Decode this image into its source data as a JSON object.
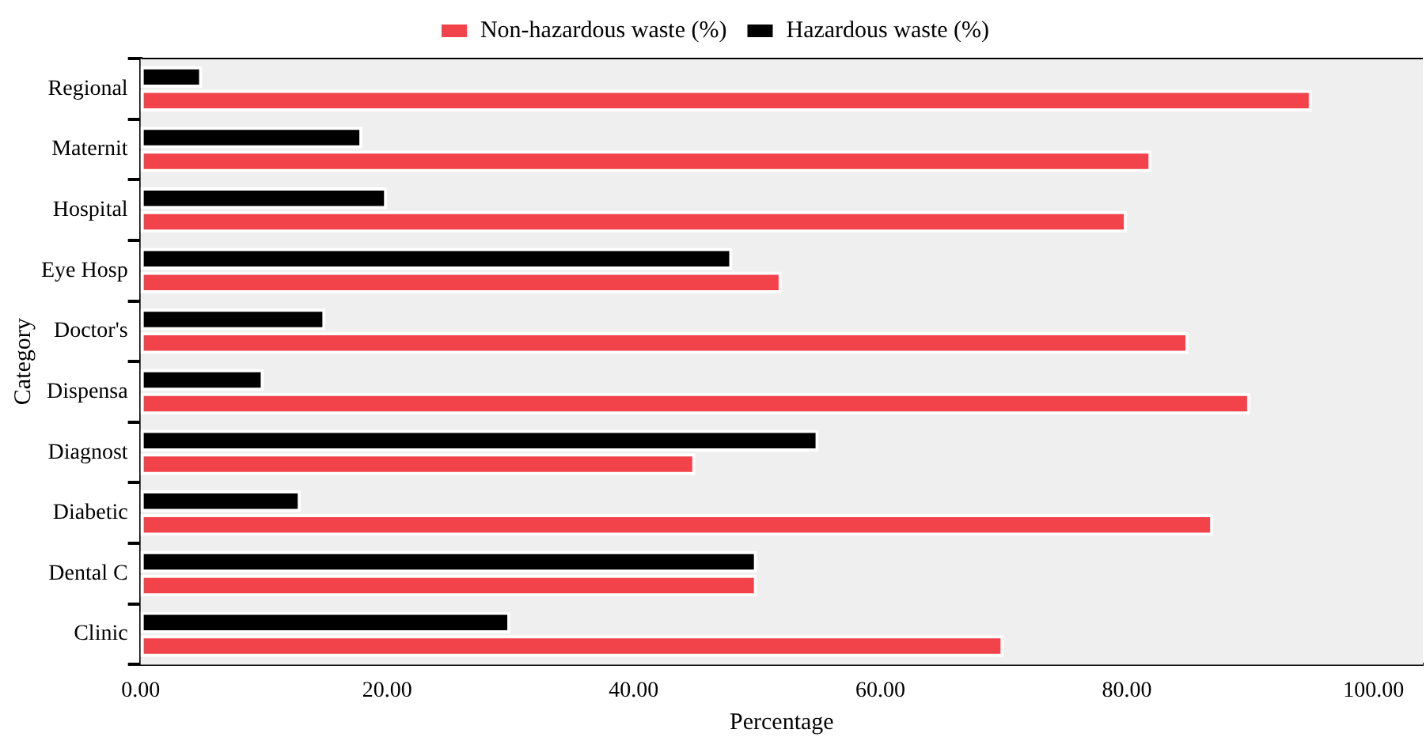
{
  "chart_data": {
    "type": "bar",
    "orientation": "horizontal",
    "categories": [
      "Regional",
      "Maternit",
      "Hospital",
      "Eye Hosp",
      "Doctor's",
      "Dispensa",
      "Diagnost",
      "Diabetic",
      "Dental C",
      "Clinic"
    ],
    "series": [
      {
        "name": "Non-hazardous waste (%)",
        "color": "#f2434b",
        "values": [
          95,
          82,
          80,
          52,
          85,
          90,
          45,
          87,
          50,
          70
        ]
      },
      {
        "name": "Hazardous waste (%)",
        "color": "#000000",
        "values": [
          5,
          18,
          20,
          48,
          15,
          10,
          55,
          13,
          50,
          30
        ]
      }
    ],
    "xlabel": "Percentage",
    "ylabel": "Category",
    "xlim": [
      0,
      104
    ],
    "xticks": [
      {
        "value": 0,
        "label": "0.00"
      },
      {
        "value": 20,
        "label": "20.00"
      },
      {
        "value": 40,
        "label": "40.00"
      },
      {
        "value": 60,
        "label": "60.00"
      },
      {
        "value": 80,
        "label": "80.00"
      },
      {
        "value": 100,
        "label": "100.00"
      }
    ],
    "grid": false,
    "legend": "top"
  }
}
